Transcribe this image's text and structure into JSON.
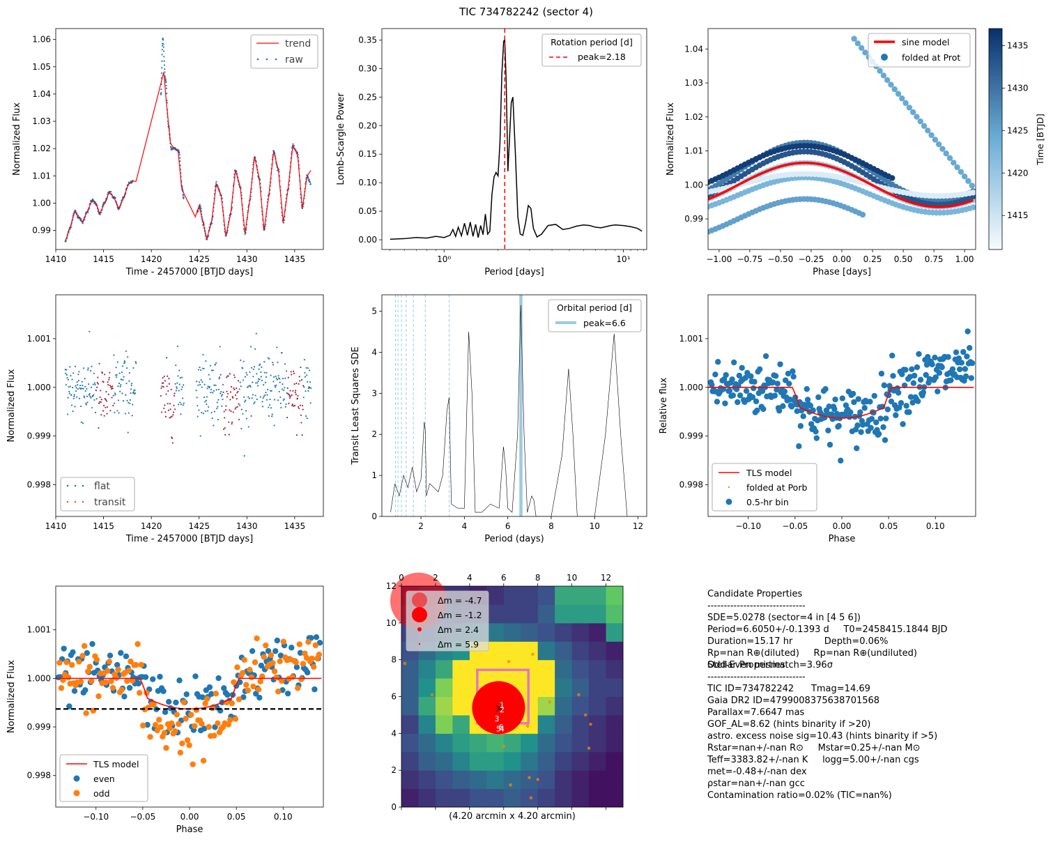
{
  "figure_title": "TIC 734782242 (sector 4)",
  "colors": {
    "trend": "#ff0000",
    "raw": "#1f77b4",
    "transit": "#a0203c",
    "orange": "#ff7f0e",
    "tls_peak": "#9ecae1",
    "black": "#000000"
  },
  "chart_data": [
    {
      "id": "raw_lightcurve",
      "type": "scatter",
      "xlabel": "Time - 2457000 [BTJD days]",
      "ylabel": "Normalized Flux",
      "xlim": [
        1410,
        1438
      ],
      "ylim": [
        0.983,
        1.064
      ],
      "xticks": [
        "1410",
        "1415",
        "1420",
        "1425",
        "1430",
        "1435"
      ],
      "yticks": [
        "0.99",
        "1.00",
        "1.01",
        "1.02",
        "1.03",
        "1.04",
        "1.05",
        "1.06"
      ],
      "legend": [
        "trend",
        "raw"
      ],
      "legend_position": "upper right",
      "series": [
        {
          "name": "trend",
          "style": "line",
          "color": "#ff0000",
          "x": [
            1411.0,
            1411.5,
            1412.0,
            1412.4,
            1412.8,
            1413.3,
            1413.8,
            1414.2,
            1414.6,
            1415.1,
            1415.6,
            1416.1,
            1416.6,
            1417.1,
            1417.6,
            1418.1,
            1418.4,
            1421.3,
            1421.6,
            1422.0,
            1422.4,
            1422.8,
            1423.2,
            1424.6,
            1425.0,
            1425.4,
            1425.8,
            1426.3,
            1426.8,
            1427.3,
            1427.8,
            1428.3,
            1428.8,
            1429.3,
            1429.8,
            1430.3,
            1430.8,
            1431.3,
            1431.8,
            1432.3,
            1432.8,
            1433.3,
            1433.8,
            1434.3,
            1434.8,
            1435.3,
            1435.8,
            1436.3,
            1436.7
          ],
          "y": [
            0.986,
            0.991,
            0.997,
            0.995,
            0.993,
            0.997,
            1.001,
            1.0,
            0.996,
            1.0,
            1.004,
            1.002,
            0.998,
            1.002,
            1.007,
            1.008,
            1.008,
            1.048,
            1.036,
            1.022,
            1.02,
            1.019,
            1.005,
            0.995,
            0.999,
            0.993,
            0.987,
            0.993,
            1.007,
            1.003,
            0.988,
            0.996,
            1.012,
            1.006,
            0.989,
            1.001,
            1.017,
            1.009,
            0.99,
            1.003,
            1.019,
            1.012,
            0.993,
            1.005,
            1.021,
            1.018,
            0.998,
            1.01,
            1.012
          ]
        },
        {
          "name": "raw",
          "style": "dots",
          "color": "#1f77b4",
          "x": [
            1411.0,
            1411.5,
            1412.0,
            1412.4,
            1412.8,
            1413.3,
            1413.8,
            1414.2,
            1414.6,
            1415.1,
            1415.6,
            1416.1,
            1416.6,
            1417.1,
            1417.6,
            1418.1,
            1421.0,
            1421.2,
            1421.5,
            1421.8,
            1422.1,
            1422.5,
            1422.9,
            1423.2,
            1423.4,
            1424.8,
            1425.1,
            1425.4,
            1425.8,
            1426.3,
            1426.8,
            1427.3,
            1427.8,
            1428.3,
            1428.8,
            1429.3,
            1429.8,
            1430.3,
            1430.8,
            1431.3,
            1431.8,
            1432.3,
            1432.8,
            1433.3,
            1433.8,
            1434.3,
            1434.8,
            1435.3,
            1435.8,
            1436.3,
            1436.7
          ],
          "y": [
            0.986,
            0.991,
            0.997,
            0.995,
            0.993,
            0.997,
            1.001,
            1.0,
            0.996,
            1.0,
            1.004,
            1.002,
            0.998,
            1.002,
            1.007,
            1.008,
            1.04,
            1.06,
            1.045,
            1.028,
            1.02,
            1.02,
            1.019,
            1.006,
            1.002,
            0.997,
            0.999,
            0.993,
            0.987,
            0.993,
            1.007,
            1.003,
            0.988,
            0.996,
            1.012,
            1.006,
            0.989,
            1.001,
            1.017,
            1.009,
            0.99,
            1.003,
            1.019,
            1.012,
            0.993,
            1.005,
            1.021,
            1.018,
            0.998,
            1.01,
            1.007
          ]
        }
      ]
    },
    {
      "id": "lomb_scargle",
      "type": "line",
      "xscale": "log",
      "xlabel": "Period [days]",
      "ylabel": "Lomb-Scargle Power",
      "xlim": [
        0.45,
        13.5
      ],
      "ylim": [
        -0.017,
        0.37
      ],
      "xticks": [
        1,
        10
      ],
      "xtick_labels": [
        "10⁰",
        "10¹"
      ],
      "yticks": [
        "0.00",
        "0.05",
        "0.10",
        "0.15",
        "0.20",
        "0.25",
        "0.30",
        "0.35"
      ],
      "legend_title": "Rotation period [d]",
      "legend": [
        "peak=2.18"
      ],
      "legend_position": "upper right",
      "peak": 2.18,
      "x": [
        0.5,
        0.6,
        0.7,
        0.8,
        0.9,
        1.0,
        1.08,
        1.12,
        1.16,
        1.2,
        1.25,
        1.3,
        1.35,
        1.4,
        1.45,
        1.5,
        1.55,
        1.6,
        1.65,
        1.7,
        1.75,
        1.8,
        1.85,
        1.9,
        1.95,
        2.0,
        2.05,
        2.1,
        2.15,
        2.18,
        2.22,
        2.27,
        2.32,
        2.37,
        2.42,
        2.5,
        2.58,
        2.66,
        2.75,
        2.85,
        2.95,
        3.05,
        3.15,
        3.3,
        3.5,
        3.8,
        4.2,
        4.6,
        5.0,
        5.5,
        6.0,
        6.5,
        7.0,
        7.5,
        8.0,
        8.5,
        9.0,
        10.0,
        11.0,
        12.0,
        12.7
      ],
      "y": [
        0.001,
        0.002,
        0.004,
        0.003,
        0.006,
        0.004,
        0.008,
        0.018,
        0.006,
        0.022,
        0.007,
        0.029,
        0.008,
        0.031,
        0.006,
        0.027,
        0.004,
        0.025,
        0.009,
        0.045,
        0.01,
        0.015,
        0.08,
        0.11,
        0.118,
        0.112,
        0.17,
        0.29,
        0.348,
        0.35,
        0.28,
        0.12,
        0.18,
        0.24,
        0.25,
        0.15,
        0.04,
        0.01,
        0.008,
        0.03,
        0.06,
        0.055,
        0.02,
        0.005,
        0.01,
        0.025,
        0.027,
        0.018,
        0.02,
        0.024,
        0.026,
        0.025,
        0.022,
        0.021,
        0.023,
        0.025,
        0.026,
        0.025,
        0.023,
        0.02,
        0.015
      ]
    },
    {
      "id": "phase_folded_rotation",
      "type": "scatter",
      "xlabel": "Phase [days]",
      "ylabel": "Normalized Flux",
      "xlim": [
        -1.09,
        1.09
      ],
      "ylim": [
        0.981,
        1.046
      ],
      "xticks": [
        "−1.00",
        "−0.75",
        "−0.50",
        "−0.25",
        "0.00",
        "0.25",
        "0.50",
        "0.75",
        "1.00"
      ],
      "yticks": [
        "0.99",
        "1.00",
        "1.01",
        "1.02",
        "1.03",
        "1.04"
      ],
      "legend": [
        "sine model",
        "folded at Prot"
      ],
      "legend_position": "upper right",
      "colorbar_label": "Time [BTJD]",
      "colorbar_ticks": [
        "1415",
        "1420",
        "1425",
        "1430",
        "1435"
      ],
      "colorbar_range": [
        1411,
        1437
      ],
      "sine_model": {
        "amplitude": 0.0065,
        "center": 1.0,
        "phase_peak": -0.3,
        "period": 2.18
      }
    },
    {
      "id": "flattened_lightcurve",
      "type": "scatter",
      "xlabel": "Time - 2457000 [BTJD days]",
      "ylabel": "Normalized Flux",
      "xlim": [
        1410,
        1438
      ],
      "ylim": [
        0.99735,
        1.0019
      ],
      "xticks": [
        "1410",
        "1415",
        "1420",
        "1425",
        "1430",
        "1435"
      ],
      "yticks": [
        "0.998",
        "0.999",
        "1.000",
        "1.001"
      ],
      "legend": [
        "flat",
        "transit"
      ],
      "legend_position": "lower left",
      "transit_windows": [
        [
          1414.3,
          1416.0
        ],
        [
          1420.9,
          1422.5
        ],
        [
          1427.5,
          1429.2
        ],
        [
          1434.2,
          1435.9
        ]
      ]
    },
    {
      "id": "tls_periodogram",
      "type": "line",
      "xlabel": "Period (days)",
      "ylabel": "Transit Least Squares SDE",
      "xlim": [
        0.2,
        12.4
      ],
      "ylim": [
        0,
        5.4
      ],
      "xticks": [
        "2",
        "4",
        "6",
        "8",
        "10",
        "12"
      ],
      "yticks": [
        "0",
        "1",
        "2",
        "3",
        "4",
        "5"
      ],
      "legend_title": "Orbital period [d]",
      "legend": [
        "peak=6.6"
      ],
      "legend_position": "upper right",
      "peak": 6.605,
      "harmonics": [
        0.825,
        0.94,
        1.1,
        1.32,
        1.65,
        2.2,
        3.3
      ],
      "x": [
        0.6,
        0.8,
        1.0,
        1.2,
        1.4,
        1.6,
        1.8,
        2.0,
        2.15,
        2.2,
        2.25,
        2.4,
        2.8,
        3.0,
        3.2,
        3.3,
        3.4,
        3.7,
        4.0,
        4.2,
        4.35,
        4.5,
        4.8,
        5.2,
        5.6,
        5.8,
        5.9,
        6.0,
        6.2,
        6.45,
        6.6,
        6.75,
        6.9,
        7.1,
        7.2,
        7.3,
        7.6,
        8.0,
        8.5,
        8.8,
        9.0,
        9.2,
        9.6,
        10.0,
        10.5,
        10.9,
        11.2,
        11.5,
        12.0
      ],
      "y": [
        0.1,
        0.8,
        0.5,
        1.0,
        0.7,
        1.2,
        0.6,
        0.9,
        2.3,
        2.1,
        0.5,
        0.8,
        0.6,
        1.0,
        2.6,
        2.9,
        0.3,
        0.2,
        0.2,
        4.5,
        3.0,
        0.1,
        0.1,
        0.3,
        0.2,
        1.7,
        1.2,
        0.2,
        0.1,
        2.0,
        5.15,
        2.0,
        0.1,
        0.5,
        0.4,
        0.0,
        0.0,
        0.0,
        1.5,
        3.6,
        2.0,
        0.0,
        0.0,
        0.0,
        2.0,
        4.45,
        2.0,
        0.0,
        0.0
      ]
    },
    {
      "id": "tls_folded",
      "type": "scatter",
      "xlabel": "Phase",
      "ylabel": "Relative flux",
      "xlim": [
        -0.143,
        0.143
      ],
      "ylim": [
        0.99735,
        1.0019
      ],
      "xticks": [
        "−0.10",
        "−0.05",
        "0.00",
        "0.05",
        "0.10"
      ],
      "yticks": [
        "0.998",
        "0.999",
        "1.000",
        "1.001"
      ],
      "legend": [
        "TLS model",
        "folded at Porb",
        "0.5-hr bin"
      ],
      "legend_position": "lower left",
      "model": {
        "t1": -0.053,
        "t2": -0.045,
        "t3": 0.045,
        "t4": 0.053,
        "depth": 0.00063
      }
    },
    {
      "id": "odd_even",
      "type": "scatter",
      "xlabel": "Phase",
      "ylabel": "Normalized Flux",
      "xlim": [
        -0.143,
        0.143
      ],
      "ylim": [
        0.99735,
        1.0019
      ],
      "xticks": [
        "−0.10",
        "−0.05",
        "0.00",
        "0.05",
        "0.10"
      ],
      "yticks": [
        "0.998",
        "0.999",
        "1.000",
        "1.001"
      ],
      "legend": [
        "TLS model",
        "even",
        "odd"
      ],
      "legend_position": "lower left",
      "depth_line": 0.99937
    },
    {
      "id": "tpf_image",
      "type": "heatmap",
      "xlabel": "(4.20 arcmin x 4.20 arcmin)",
      "xlim": [
        0,
        13
      ],
      "ylim": [
        0,
        12
      ],
      "xticks": [
        "0",
        "2",
        "4",
        "6",
        "8",
        "10",
        "12"
      ],
      "yticks": [
        "0",
        "2",
        "4",
        "6",
        "8",
        "10",
        "12"
      ],
      "legend": [
        "Δm = -4.7",
        "Δm = -1.2",
        "Δm = 2.4",
        "Δm = 5.9"
      ],
      "legend_position": "upper left",
      "star_labels": [
        "1",
        "2",
        "3",
        "4",
        "5",
        "6"
      ],
      "grid": [
        [
          0.1,
          0.15,
          0.2,
          0.2,
          0.25,
          0.25,
          0.3,
          0.25,
          0.2,
          0.15,
          0.1,
          0.05,
          0.05
        ],
        [
          0.15,
          0.2,
          0.25,
          0.3,
          0.35,
          0.4,
          0.35,
          0.3,
          0.25,
          0.15,
          0.1,
          0.05,
          0.05
        ],
        [
          0.2,
          0.3,
          0.35,
          0.45,
          0.55,
          0.55,
          0.5,
          0.4,
          0.3,
          0.2,
          0.15,
          0.1,
          0.05
        ],
        [
          0.25,
          0.35,
          0.45,
          0.55,
          0.6,
          0.65,
          0.6,
          0.5,
          0.35,
          0.25,
          0.2,
          0.15,
          0.1
        ],
        [
          0.2,
          0.45,
          0.8,
          0.6,
          1.0,
          1.0,
          1.0,
          1.0,
          0.45,
          0.3,
          0.2,
          0.15,
          0.1
        ],
        [
          0.3,
          0.6,
          0.85,
          1.0,
          1.0,
          1.0,
          1.0,
          1.0,
          0.85,
          0.35,
          0.25,
          0.2,
          0.15
        ],
        [
          0.3,
          0.5,
          0.8,
          1.0,
          1.0,
          1.0,
          1.0,
          1.0,
          1.0,
          0.4,
          0.3,
          0.2,
          0.2
        ],
        [
          0.3,
          0.45,
          0.6,
          1.0,
          1.0,
          1.0,
          1.0,
          1.0,
          1.0,
          0.35,
          0.25,
          0.2,
          0.15
        ],
        [
          0.25,
          0.35,
          0.45,
          0.5,
          1.0,
          1.0,
          1.0,
          1.0,
          0.4,
          0.3,
          0.2,
          0.15,
          0.1
        ],
        [
          0.2,
          0.25,
          0.3,
          0.35,
          0.4,
          0.4,
          0.35,
          0.3,
          0.25,
          0.2,
          0.15,
          0.1,
          0.55
        ],
        [
          0.15,
          0.2,
          0.25,
          0.2,
          0.2,
          0.2,
          0.2,
          0.2,
          0.3,
          0.55,
          0.55,
          0.55,
          0.7
        ],
        [
          0.1,
          0.15,
          0.15,
          0.15,
          0.1,
          0.15,
          0.2,
          0.2,
          0.25,
          0.6,
          0.6,
          0.6,
          0.75
        ]
      ]
    }
  ],
  "candidate_properties": [
    "Candidate Properties",
    "------------------------------",
    "SDE=5.0278 (sector=4 in [4 5 6])",
    "Period=6.6050+/-0.1393 d     T0=2458415.1844 BJD",
    "Duration=15.17 hr           Depth=0.06%",
    "Rp=nan R⊕(diluted)     Rp=nan R⊕(undiluted)",
    "Odd-Even mismatch=3.96σ"
  ],
  "stellar_properties": [
    "Stellar Properties",
    "------------------------------",
    "TIC ID=734782242      Tmag=14.69",
    "Gaia DR2 ID=4799008375638701568",
    "Parallax=7.6647 mas",
    "GOF_AL=8.62 (hints binarity if >20)",
    "astro. excess noise sig=10.43 (hints binarity if >5)",
    "Rstar=nan+/-nan R⊙     Mstar=0.25+/-nan M⊙",
    "Teff=3383.82+/-nan K     logg=5.00+/-nan cgs",
    "met=-0.48+/-nan dex",
    "ρstar=nan+/-nan gcc",
    "Contamination ratio=0.02% (TIC=nan%)"
  ]
}
